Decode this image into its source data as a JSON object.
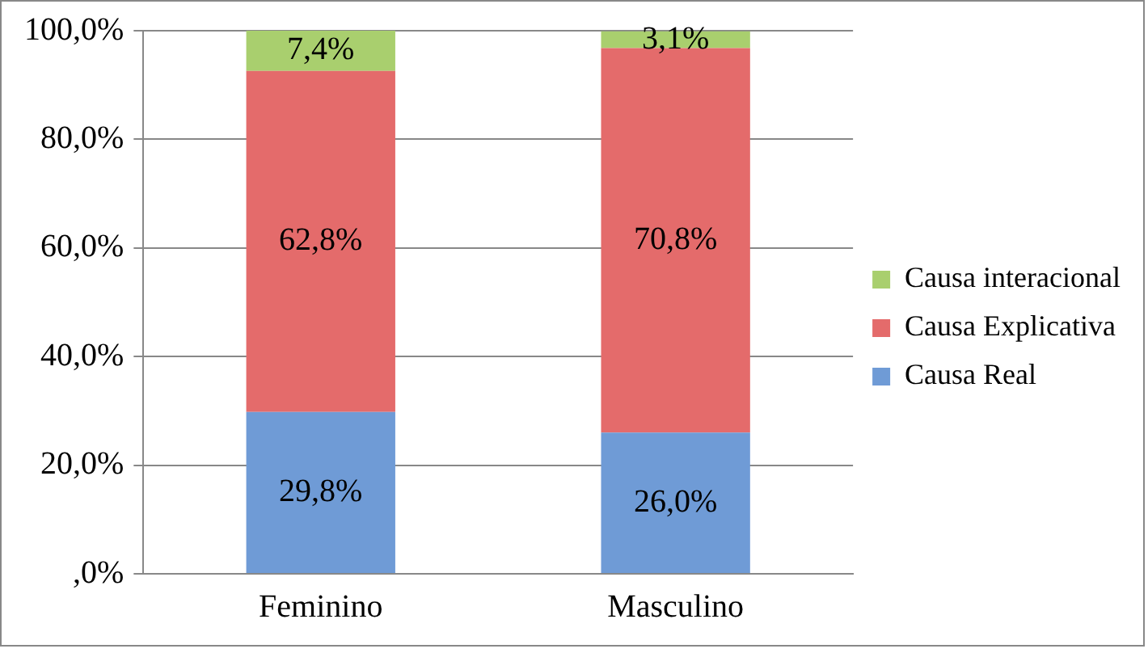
{
  "chart_data": {
    "type": "bar",
    "stacked": true,
    "categories": [
      "Feminino",
      "Masculino"
    ],
    "series": [
      {
        "name": "Causa Real",
        "color": "#6f9bd6",
        "values": [
          29.8,
          26.0
        ],
        "value_labels": [
          "29,8%",
          "26,0%"
        ]
      },
      {
        "name": "Causa Explicativa",
        "color": "#e46b6b",
        "values": [
          62.8,
          70.8
        ],
        "value_labels": [
          "62,8%",
          "70,8%"
        ]
      },
      {
        "name": "Causa interacional",
        "color": "#a9cf6e",
        "values": [
          7.4,
          3.1
        ],
        "value_labels": [
          "7,4%",
          "3,1%"
        ]
      }
    ],
    "ylim": [
      0,
      100
    ],
    "yticks": [
      {
        "value": 0,
        "label": ",0%"
      },
      {
        "value": 20,
        "label": "20,0%"
      },
      {
        "value": 40,
        "label": "40,0%"
      },
      {
        "value": 60,
        "label": "60,0%"
      },
      {
        "value": 80,
        "label": "80,0%"
      },
      {
        "value": 100,
        "label": "100,0%"
      }
    ],
    "grid": "y",
    "legend": "right"
  }
}
